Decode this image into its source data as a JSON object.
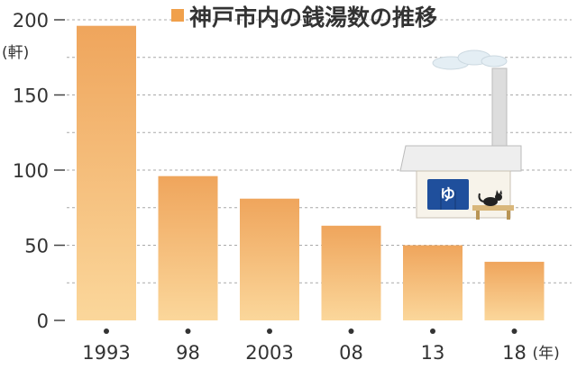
{
  "chart_data": {
    "type": "bar",
    "title": "神戸市内の銭湯数の推移",
    "y_unit_label": "(軒)",
    "x_unit_label": "(年)",
    "categories": [
      "1993",
      "98",
      "2003",
      "08",
      "13",
      "18"
    ],
    "values": [
      196,
      96,
      81,
      63,
      50,
      39
    ],
    "ylim": [
      0,
      200
    ],
    "yticks": [
      0,
      50,
      100,
      150,
      200
    ],
    "grid": true,
    "bar_color_top": "#efa55c",
    "bar_color_bottom": "#fbd79b",
    "title_marker_color": "#f0a04b"
  },
  "illustration": {
    "sign_glyph": "ゆ",
    "awning_color": "#1f4f9c",
    "wall_color": "#ffffff",
    "roof_color": "#eeeeee",
    "chimney_color": "#dddddd"
  }
}
